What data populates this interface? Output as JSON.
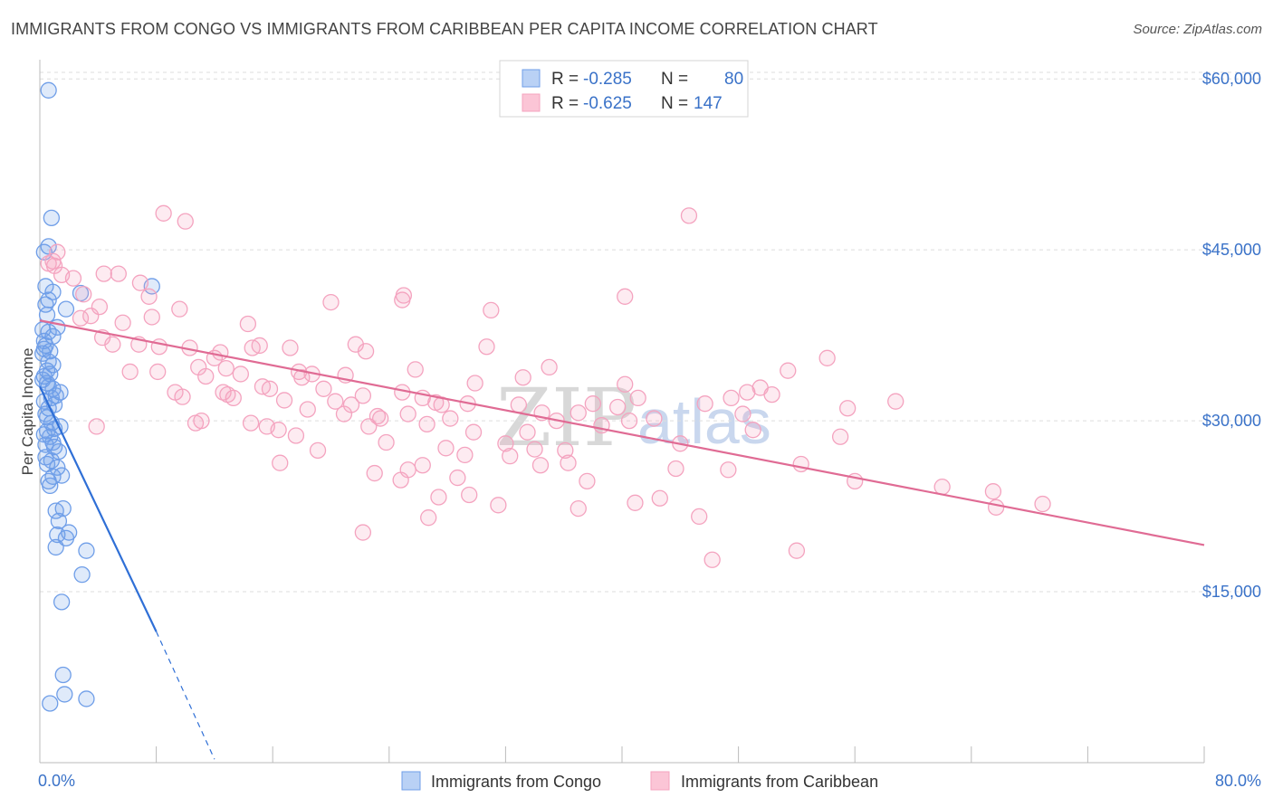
{
  "title": "IMMIGRANTS FROM CONGO VS IMMIGRANTS FROM CARIBBEAN PER CAPITA INCOME CORRELATION CHART",
  "source": "Source: ZipAtlas.com",
  "watermark": {
    "zip": "ZIP",
    "atlas": "atlas"
  },
  "chart_data": {
    "type": "scatter",
    "ylabel": "Per Capita Income",
    "xlim": [
      0,
      80
    ],
    "ylim": [
      0,
      62000
    ],
    "x_tick_labels": {
      "min": "0.0%",
      "max": "80.0%"
    },
    "y_ticks": [
      {
        "value": 15000,
        "label": "$15,000"
      },
      {
        "value": 30000,
        "label": "$30,000"
      },
      {
        "value": 45000,
        "label": "$45,000"
      },
      {
        "value": 60000,
        "label": "$60,000"
      }
    ],
    "grid": "horizontal dashed",
    "legend": {
      "placement": "top-center",
      "rows": [
        {
          "r_label": "R =",
          "r_value": "-0.285",
          "n_label": "N =",
          "n_value": "80"
        },
        {
          "r_label": "R =",
          "r_value": "-0.625",
          "n_label": "N =",
          "n_value": "147"
        }
      ]
    },
    "series": [
      {
        "name": "Immigrants from Congo",
        "color": "#6f9ee8",
        "line_color": "#2f6fd6",
        "trend": {
          "x0": 0,
          "y0": 33000,
          "x1": 8,
          "y1": 11500,
          "dash_to_x": 12,
          "dash_to_y": 300
        },
        "points": [
          [
            0.6,
            59000
          ],
          [
            0.8,
            47800
          ],
          [
            0.6,
            45300
          ],
          [
            0.3,
            44800
          ],
          [
            0.4,
            41800
          ],
          [
            0.9,
            41300
          ],
          [
            0.4,
            40200
          ],
          [
            0.5,
            39300
          ],
          [
            1.2,
            38200
          ],
          [
            0.2,
            38000
          ],
          [
            0.6,
            37800
          ],
          [
            0.9,
            37400
          ],
          [
            0.3,
            37000
          ],
          [
            0.4,
            36600
          ],
          [
            0.7,
            36100
          ],
          [
            0.2,
            35900
          ],
          [
            0.9,
            34900
          ],
          [
            0.5,
            34400
          ],
          [
            0.7,
            34100
          ],
          [
            0.3,
            33900
          ],
          [
            0.2,
            33600
          ],
          [
            0.5,
            33300
          ],
          [
            1.4,
            32500
          ],
          [
            1.1,
            32200
          ],
          [
            0.8,
            32000
          ],
          [
            0.3,
            31700
          ],
          [
            0.6,
            31100
          ],
          [
            0.4,
            30600
          ],
          [
            0.8,
            29800
          ],
          [
            1.0,
            29300
          ],
          [
            0.5,
            29100
          ],
          [
            0.3,
            28800
          ],
          [
            0.7,
            28600
          ],
          [
            0.9,
            28100
          ],
          [
            0.4,
            27900
          ],
          [
            1.3,
            27300
          ],
          [
            0.8,
            26500
          ],
          [
            0.5,
            26200
          ],
          [
            1.2,
            25900
          ],
          [
            0.9,
            25100
          ],
          [
            1.5,
            25200
          ],
          [
            0.6,
            24700
          ],
          [
            1.6,
            22300
          ],
          [
            1.1,
            22100
          ],
          [
            1.3,
            21200
          ],
          [
            1.2,
            20000
          ],
          [
            1.8,
            19700
          ],
          [
            1.1,
            18900
          ],
          [
            3.2,
            18600
          ],
          [
            2.9,
            16500
          ],
          [
            1.5,
            14100
          ],
          [
            7.7,
            41800
          ],
          [
            2.8,
            41200
          ],
          [
            0.6,
            40600
          ],
          [
            1.6,
            7700
          ],
          [
            1.7,
            6000
          ],
          [
            3.2,
            5600
          ],
          [
            0.7,
            5200
          ],
          [
            0.3,
            36300
          ],
          [
            0.6,
            33000
          ],
          [
            1.0,
            31400
          ],
          [
            0.5,
            30300
          ],
          [
            1.0,
            27700
          ],
          [
            0.4,
            26800
          ],
          [
            1.8,
            39800
          ],
          [
            0.6,
            35200
          ],
          [
            0.9,
            32800
          ],
          [
            1.4,
            29500
          ],
          [
            0.7,
            24300
          ],
          [
            2.0,
            20200
          ]
        ]
      },
      {
        "name": "Immigrants from Caribbean",
        "color": "#f4a3bf",
        "line_color": "#e06b94",
        "trend": {
          "x0": 0,
          "y0": 38800,
          "x1": 80,
          "y1": 19100
        },
        "points": [
          [
            0.6,
            43800
          ],
          [
            1.0,
            43600
          ],
          [
            1.5,
            42800
          ],
          [
            1.2,
            44800
          ],
          [
            0.9,
            44000
          ],
          [
            2.3,
            42500
          ],
          [
            3.0,
            41100
          ],
          [
            2.8,
            39000
          ],
          [
            3.5,
            39200
          ],
          [
            4.4,
            42900
          ],
          [
            5.4,
            42900
          ],
          [
            6.9,
            42100
          ],
          [
            8.5,
            48200
          ],
          [
            10.0,
            47500
          ],
          [
            7.5,
            40900
          ],
          [
            7.7,
            39100
          ],
          [
            5.7,
            38600
          ],
          [
            6.8,
            36700
          ],
          [
            5.0,
            36700
          ],
          [
            4.3,
            37300
          ],
          [
            4.1,
            40000
          ],
          [
            9.6,
            39800
          ],
          [
            8.2,
            36500
          ],
          [
            10.3,
            36400
          ],
          [
            10.9,
            34700
          ],
          [
            12.4,
            36000
          ],
          [
            12.8,
            34600
          ],
          [
            11.4,
            33900
          ],
          [
            12.6,
            32500
          ],
          [
            12.9,
            32300
          ],
          [
            13.3,
            32000
          ],
          [
            13.8,
            34100
          ],
          [
            14.3,
            38500
          ],
          [
            14.6,
            36400
          ],
          [
            15.1,
            36600
          ],
          [
            15.3,
            33000
          ],
          [
            15.8,
            32800
          ],
          [
            15.6,
            29500
          ],
          [
            14.5,
            29800
          ],
          [
            11.1,
            30000
          ],
          [
            10.7,
            29800
          ],
          [
            9.3,
            32500
          ],
          [
            8.1,
            34300
          ],
          [
            9.8,
            32100
          ],
          [
            17.2,
            36400
          ],
          [
            17.8,
            34300
          ],
          [
            18.0,
            33800
          ],
          [
            18.7,
            34100
          ],
          [
            19.5,
            32800
          ],
          [
            20.3,
            31700
          ],
          [
            21.0,
            34000
          ],
          [
            21.7,
            36700
          ],
          [
            22.2,
            32200
          ],
          [
            22.4,
            36100
          ],
          [
            18.4,
            31000
          ],
          [
            16.8,
            31800
          ],
          [
            16.4,
            29200
          ],
          [
            16.5,
            26300
          ],
          [
            17.6,
            28700
          ],
          [
            19.1,
            27400
          ],
          [
            20.9,
            30600
          ],
          [
            21.4,
            31400
          ],
          [
            22.6,
            29500
          ],
          [
            23.2,
            30400
          ],
          [
            23.8,
            28100
          ],
          [
            24.9,
            40600
          ],
          [
            25.8,
            34500
          ],
          [
            24.9,
            32500
          ],
          [
            25.3,
            30600
          ],
          [
            26.3,
            32000
          ],
          [
            26.6,
            29700
          ],
          [
            27.2,
            31600
          ],
          [
            27.6,
            31400
          ],
          [
            28.2,
            30200
          ],
          [
            27.9,
            27600
          ],
          [
            29.2,
            27000
          ],
          [
            29.4,
            31500
          ],
          [
            29.9,
            33300
          ],
          [
            30.7,
            36500
          ],
          [
            29.8,
            29000
          ],
          [
            28.7,
            25000
          ],
          [
            29.5,
            23500
          ],
          [
            27.4,
            23300
          ],
          [
            26.7,
            21500
          ],
          [
            26.3,
            26100
          ],
          [
            25.3,
            25700
          ],
          [
            24.8,
            24800
          ],
          [
            22.2,
            20200
          ],
          [
            23.4,
            30200
          ],
          [
            31.0,
            39700
          ],
          [
            32.3,
            26900
          ],
          [
            32.9,
            31400
          ],
          [
            33.5,
            29000
          ],
          [
            34.5,
            30700
          ],
          [
            34.4,
            26100
          ],
          [
            35.0,
            34700
          ],
          [
            34.0,
            27500
          ],
          [
            35.5,
            30000
          ],
          [
            36.1,
            27400
          ],
          [
            36.3,
            26300
          ],
          [
            37.0,
            30700
          ],
          [
            38.0,
            31500
          ],
          [
            38.6,
            29600
          ],
          [
            39.7,
            31200
          ],
          [
            40.2,
            33200
          ],
          [
            40.9,
            22800
          ],
          [
            40.5,
            30000
          ],
          [
            41.1,
            32000
          ],
          [
            42.2,
            30200
          ],
          [
            42.6,
            23200
          ],
          [
            43.7,
            25800
          ],
          [
            44.6,
            48000
          ],
          [
            45.3,
            21600
          ],
          [
            45.7,
            31500
          ],
          [
            46.2,
            17800
          ],
          [
            47.3,
            25700
          ],
          [
            47.5,
            32000
          ],
          [
            48.6,
            32500
          ],
          [
            48.3,
            30600
          ],
          [
            49.0,
            29200
          ],
          [
            49.5,
            32900
          ],
          [
            50.3,
            32300
          ],
          [
            51.4,
            34400
          ],
          [
            52.0,
            18600
          ],
          [
            52.3,
            26200
          ],
          [
            54.1,
            35500
          ],
          [
            55.0,
            28600
          ],
          [
            55.5,
            31100
          ],
          [
            56.0,
            24700
          ],
          [
            58.8,
            31700
          ],
          [
            62.0,
            24200
          ],
          [
            65.5,
            23800
          ],
          [
            65.7,
            22400
          ],
          [
            68.9,
            22700
          ],
          [
            31.5,
            22600
          ],
          [
            40.2,
            40900
          ],
          [
            37.6,
            24700
          ],
          [
            32.0,
            28000
          ],
          [
            20.0,
            40400
          ],
          [
            23.0,
            25400
          ],
          [
            25.0,
            41000
          ],
          [
            3.9,
            29500
          ],
          [
            12.0,
            35500
          ],
          [
            37.0,
            22300
          ],
          [
            44.0,
            28000
          ],
          [
            6.2,
            34300
          ],
          [
            33.2,
            33800
          ]
        ]
      }
    ]
  },
  "bottom_legend": [
    "Immigrants from Congo",
    "Immigrants from Caribbean"
  ]
}
